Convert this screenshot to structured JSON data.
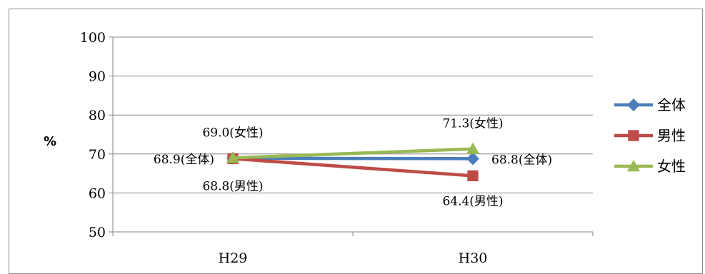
{
  "chart_data": {
    "type": "line",
    "title": "",
    "xlabel": "",
    "ylabel": "%",
    "ylim": [
      50,
      100
    ],
    "yticks": [
      50,
      60,
      70,
      80,
      90,
      100
    ],
    "grid": "horizontal",
    "legend": "right",
    "categories": [
      "H29",
      "H30"
    ],
    "series": [
      {
        "name": "全体",
        "values": [
          68.9,
          68.8
        ],
        "color": "#4a7ebb",
        "marker": "diamond",
        "labels": [
          "68.9(全体)",
          "68.8(全体)"
        ]
      },
      {
        "name": "男性",
        "values": [
          68.8,
          64.4
        ],
        "color": "#be4b48",
        "marker": "square",
        "labels": [
          "68.8(男性)",
          "64.4(男性)"
        ]
      },
      {
        "name": "女性",
        "values": [
          69.0,
          71.3
        ],
        "color": "#98b954",
        "marker": "triangle",
        "labels": [
          "69.0(女性)",
          "71.3(女性)"
        ]
      }
    ]
  }
}
